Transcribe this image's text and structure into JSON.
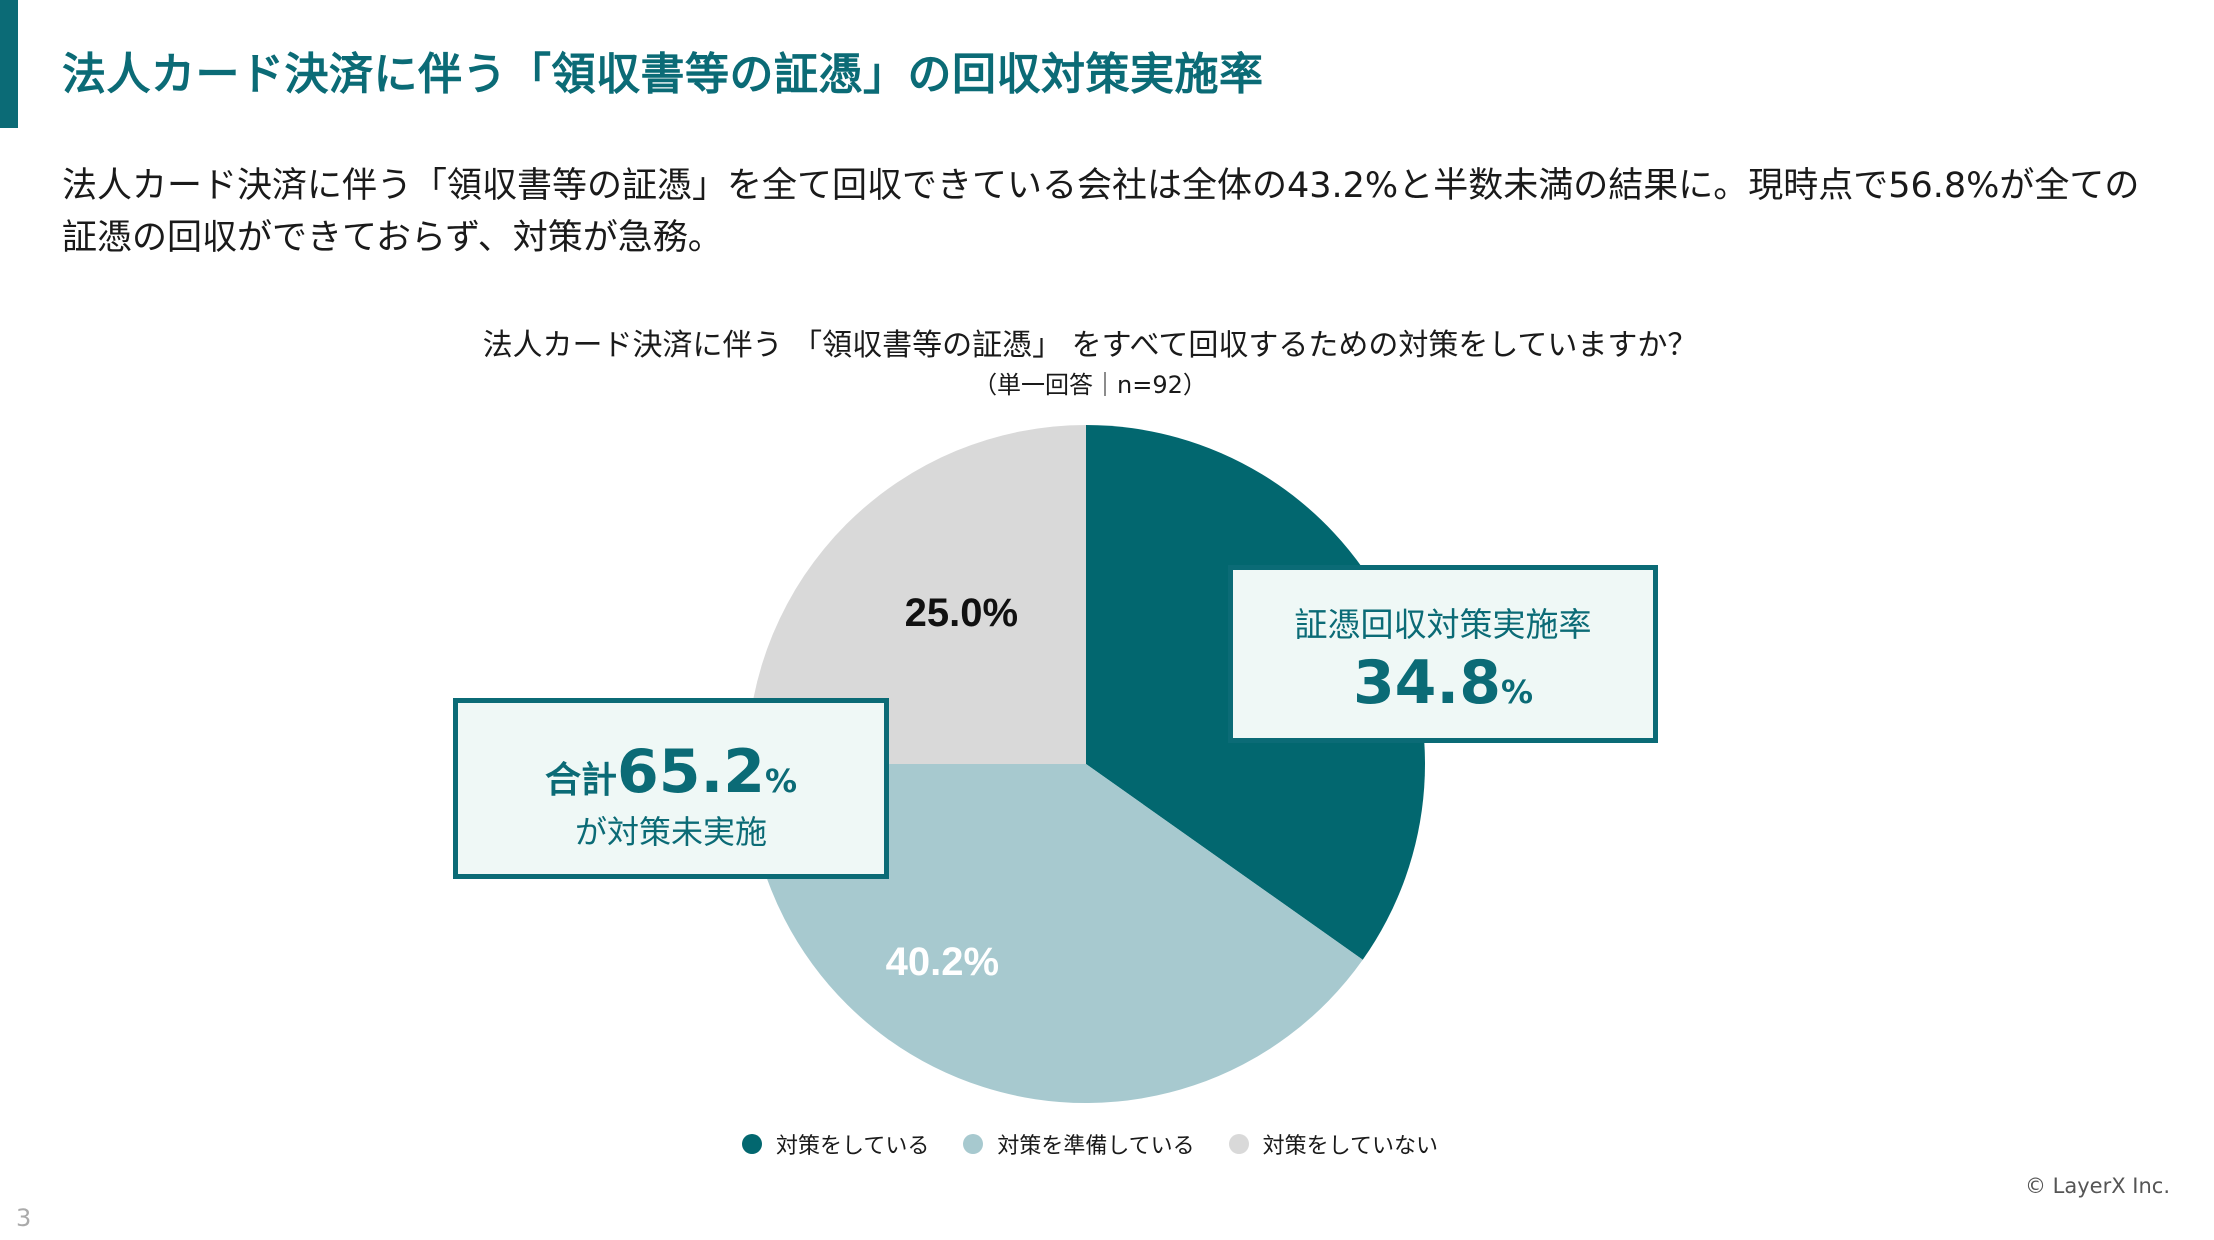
{
  "page": {
    "title": "法人カード決済に伴う「領収書等の証憑」の回収対策実施率",
    "lead": "法人カード決済に伴う「領収書等の証憑」を全て回収できている会社は全体の43.2%と半数未満の結果に。現時点で56.8%が全ての証憑の回収ができておらず、対策が急務。",
    "copyright": "© LayerX Inc.",
    "page_number": "3"
  },
  "colors": {
    "accent": "#0b6b76",
    "slice_doing": "#02676f",
    "slice_preparing": "#a7c9cf",
    "slice_not": "#d9d9d9"
  },
  "callouts": {
    "implemented_label": "証憑回収対策実施率",
    "implemented_value": "34.8",
    "implemented_unit": "%",
    "not_implemented_prefix": "合計",
    "not_implemented_value": "65.2",
    "not_implemented_unit": "%",
    "not_implemented_suffix": "が対策未実施"
  },
  "chart_data": {
    "type": "pie",
    "title": "法人カード決済に伴う 「領収書等の証憑」 をすべて回収するための対策をしていますか？",
    "subtitle": "（単一回答｜n=92）",
    "slices": [
      {
        "name": "対策をしている",
        "value": 34.8,
        "label": "34.8%",
        "color": "#02676f",
        "label_color": "#ffffff",
        "show_label": false
      },
      {
        "name": "対策を準備している",
        "value": 40.2,
        "label": "40.2%",
        "color": "#a7c9cf",
        "label_color": "#ffffff",
        "show_label": true
      },
      {
        "name": "対策をしていない",
        "value": 25.0,
        "label": "25.0%",
        "color": "#d9d9d9",
        "label_color": "#111111",
        "show_label": true
      }
    ],
    "start": "12 o'clock",
    "direction": "clockwise",
    "legend_position": "bottom"
  }
}
